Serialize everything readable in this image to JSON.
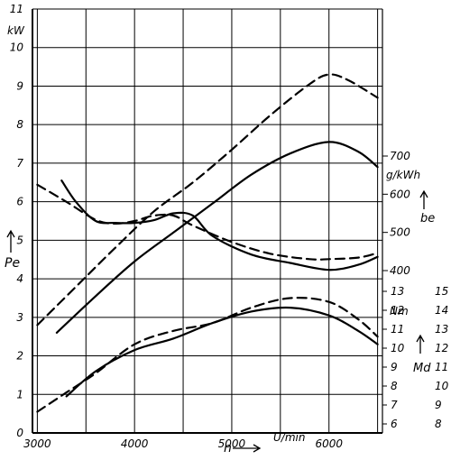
{
  "chart_data": {
    "type": "line",
    "xlabel": "n",
    "xunit": "U/min",
    "xlim": [
      2950,
      6550
    ],
    "x_ticks": [
      3000,
      4000,
      5000,
      6000
    ],
    "grid": true,
    "left_axis": {
      "label": "Pe",
      "unit": "kW",
      "range": [
        0,
        11
      ],
      "ticks": [
        "0",
        "1",
        "2",
        "3",
        "4",
        "5",
        "6",
        "7",
        "8",
        "9",
        "10",
        "11"
      ]
    },
    "be_axis": {
      "label": "be",
      "unit": "g/kWh",
      "range": [
        400,
        700
      ],
      "ticks": [
        "400",
        "500",
        "600",
        "700"
      ]
    },
    "md_axis": {
      "label": "Md",
      "unit": "Nm",
      "inner_ticks": [
        "6",
        "7",
        "8",
        "9",
        "10",
        "11",
        "12",
        "13"
      ],
      "outer_ticks": [
        "8",
        "9",
        "10",
        "11",
        "12",
        "13",
        "14",
        "15"
      ]
    },
    "series": [
      {
        "style": "solid",
        "axis": "Pe",
        "x": [
          3200,
          3600,
          4000,
          4400,
          4800,
          5200,
          5600,
          6000,
          6300,
          6500
        ],
        "y": [
          2.6,
          3.55,
          4.45,
          5.2,
          5.95,
          6.7,
          7.25,
          7.55,
          7.3,
          6.9
        ]
      },
      {
        "style": "dashed",
        "axis": "Pe",
        "x": [
          3000,
          3400,
          3800,
          4200,
          4600,
          5000,
          5400,
          5800,
          6000,
          6200,
          6500
        ],
        "y": [
          2.8,
          3.8,
          4.8,
          5.75,
          6.5,
          7.35,
          8.25,
          9.05,
          9.3,
          9.15,
          8.7
        ]
      },
      {
        "style": "solid",
        "axis": "be",
        "x": [
          3250,
          3400,
          3600,
          3800,
          4000,
          4200,
          4400,
          4600,
          4800,
          5200,
          5600,
          6000,
          6300,
          6500
        ],
        "y": [
          636,
          579,
          530,
          525,
          525,
          532,
          550,
          544,
          491,
          442,
          420,
          402,
          415,
          436
        ]
      },
      {
        "style": "dashed",
        "axis": "be",
        "x": [
          3000,
          3300,
          3600,
          3800,
          4000,
          4200,
          4400,
          4600,
          5000,
          5400,
          5800,
          6000,
          6300,
          6500
        ],
        "y": [
          625,
          580,
          533,
          523,
          530,
          544,
          544,
          518,
          475,
          444,
          430,
          430,
          434,
          446
        ]
      },
      {
        "style": "solid",
        "axis": "Pe",
        "x": [
          3300,
          3600,
          4000,
          4400,
          4800,
          5200,
          5600,
          6000,
          6300,
          6500
        ],
        "y": [
          0.95,
          1.6,
          2.15,
          2.45,
          2.85,
          3.15,
          3.25,
          3.05,
          2.65,
          2.3
        ]
      },
      {
        "style": "dashed",
        "axis": "Pe",
        "x": [
          3000,
          3300,
          3600,
          4000,
          4400,
          4800,
          5200,
          5600,
          6000,
          6300,
          6500
        ],
        "y": [
          0.55,
          1.05,
          1.55,
          2.3,
          2.65,
          2.85,
          3.25,
          3.5,
          3.4,
          2.95,
          2.5
        ]
      }
    ]
  }
}
